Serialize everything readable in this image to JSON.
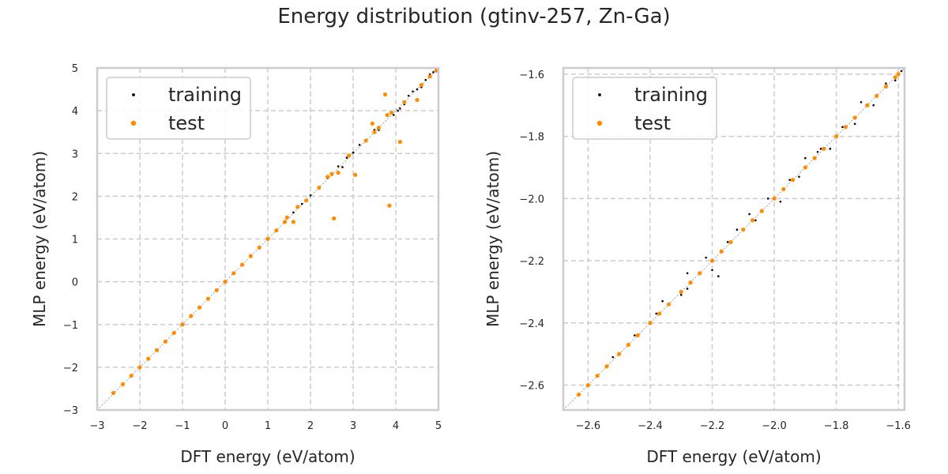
{
  "title": "Energy distribution (gtinv-257, Zn-Ga)",
  "colors": {
    "training": "#000000",
    "test": "#ff8c00",
    "grid": "#cccccc",
    "frame": "#cccccc"
  },
  "chart_data": [
    {
      "type": "scatter",
      "xlabel": "DFT energy (eV/atom)",
      "ylabel": "MLP energy (eV/atom)",
      "xlim": [
        -3,
        5
      ],
      "ylim": [
        -3,
        5
      ],
      "xticks": [
        "−3",
        "−2",
        "−1",
        "0",
        "1",
        "2",
        "3",
        "4",
        "5"
      ],
      "yticks": [
        "−3",
        "−2",
        "−1",
        "0",
        "1",
        "2",
        "3",
        "4",
        "5"
      ],
      "grid": true,
      "legend": "top-left",
      "diagonal": true,
      "series": [
        {
          "name": "training",
          "color": "#000000",
          "marker_size": 1.3,
          "points": [
            [
              -2.6,
              -2.6
            ],
            [
              -2.2,
              -2.2
            ],
            [
              -1.8,
              -1.8
            ],
            [
              -1.4,
              -1.4
            ],
            [
              -1.0,
              -1.0
            ],
            [
              -0.6,
              -0.6
            ],
            [
              -0.2,
              -0.2
            ],
            [
              0.2,
              0.2
            ],
            [
              0.6,
              0.6
            ],
            [
              1.0,
              1.0
            ],
            [
              1.4,
              1.4
            ],
            [
              2.0,
              2.02
            ],
            [
              2.4,
              2.42
            ],
            [
              2.65,
              2.7
            ],
            [
              2.75,
              2.68
            ],
            [
              3.0,
              3.02
            ],
            [
              3.3,
              3.32
            ],
            [
              3.6,
              3.55
            ],
            [
              3.8,
              3.9
            ],
            [
              4.05,
              4.0
            ],
            [
              4.2,
              4.15
            ],
            [
              4.3,
              4.35
            ],
            [
              4.4,
              4.45
            ],
            [
              4.5,
              4.5
            ],
            [
              4.6,
              4.55
            ],
            [
              4.7,
              4.72
            ],
            [
              4.8,
              4.85
            ],
            [
              4.88,
              4.9
            ],
            [
              4.95,
              4.92
            ],
            [
              4.1,
              4.05
            ],
            [
              3.95,
              3.9
            ],
            [
              3.5,
              3.55
            ],
            [
              3.15,
              3.2
            ],
            [
              2.85,
              2.9
            ],
            [
              1.8,
              1.82
            ],
            [
              1.6,
              1.62
            ]
          ]
        },
        {
          "name": "test",
          "color": "#ff8c00",
          "marker_size": 2.6,
          "points": [
            [
              -2.62,
              -2.6
            ],
            [
              -2.4,
              -2.4
            ],
            [
              -2.2,
              -2.2
            ],
            [
              -2.0,
              -2.0
            ],
            [
              -1.8,
              -1.8
            ],
            [
              -1.6,
              -1.6
            ],
            [
              -1.4,
              -1.4
            ],
            [
              -1.2,
              -1.2
            ],
            [
              -1.0,
              -1.0
            ],
            [
              -0.8,
              -0.8
            ],
            [
              -0.6,
              -0.6
            ],
            [
              -0.4,
              -0.4
            ],
            [
              -0.2,
              -0.2
            ],
            [
              0.0,
              0.0
            ],
            [
              0.2,
              0.2
            ],
            [
              0.4,
              0.4
            ],
            [
              0.6,
              0.6
            ],
            [
              0.8,
              0.8
            ],
            [
              1.0,
              1.0
            ],
            [
              1.2,
              1.2
            ],
            [
              1.4,
              1.4
            ],
            [
              1.45,
              1.5
            ],
            [
              1.6,
              1.4
            ],
            [
              1.7,
              1.75
            ],
            [
              1.9,
              1.9
            ],
            [
              2.2,
              2.2
            ],
            [
              2.4,
              2.45
            ],
            [
              2.5,
              2.52
            ],
            [
              2.55,
              1.48
            ],
            [
              2.65,
              2.55
            ],
            [
              2.9,
              2.95
            ],
            [
              3.05,
              2.5
            ],
            [
              3.3,
              3.3
            ],
            [
              3.45,
              3.7
            ],
            [
              3.5,
              3.5
            ],
            [
              3.6,
              3.6
            ],
            [
              3.75,
              4.38
            ],
            [
              3.8,
              3.9
            ],
            [
              3.85,
              1.78
            ],
            [
              3.9,
              3.95
            ],
            [
              4.1,
              3.27
            ],
            [
              4.2,
              4.2
            ],
            [
              4.5,
              4.25
            ],
            [
              4.6,
              4.6
            ],
            [
              4.8,
              4.8
            ],
            [
              4.95,
              4.95
            ]
          ]
        }
      ]
    },
    {
      "type": "scatter",
      "xlabel": "DFT energy (eV/atom)",
      "ylabel": "MLP energy (eV/atom)",
      "xlim": [
        -2.68,
        -1.58
      ],
      "ylim": [
        -2.68,
        -1.58
      ],
      "xticks": [
        "−2.6",
        "−2.4",
        "−2.2",
        "−2.0",
        "−1.8",
        "−1.6"
      ],
      "yticks": [
        "−2.6",
        "−2.4",
        "−2.2",
        "−2.0",
        "−1.8",
        "−1.6"
      ],
      "grid": true,
      "legend": "top-left",
      "diagonal": true,
      "series": [
        {
          "name": "training",
          "color": "#000000",
          "marker_size": 1.3,
          "points": [
            [
              -2.6,
              -2.6
            ],
            [
              -2.52,
              -2.51
            ],
            [
              -2.45,
              -2.44
            ],
            [
              -2.38,
              -2.37
            ],
            [
              -2.36,
              -2.33
            ],
            [
              -2.3,
              -2.31
            ],
            [
              -2.28,
              -2.24
            ],
            [
              -2.22,
              -2.19
            ],
            [
              -2.2,
              -2.23
            ],
            [
              -2.18,
              -2.25
            ],
            [
              -2.15,
              -2.14
            ],
            [
              -2.12,
              -2.1
            ],
            [
              -2.06,
              -2.07
            ],
            [
              -2.02,
              -2.0
            ],
            [
              -1.98,
              -2.01
            ],
            [
              -1.95,
              -1.94
            ],
            [
              -1.92,
              -1.93
            ],
            [
              -1.9,
              -1.87
            ],
            [
              -1.86,
              -1.85
            ],
            [
              -1.82,
              -1.84
            ],
            [
              -1.78,
              -1.77
            ],
            [
              -1.74,
              -1.76
            ],
            [
              -1.72,
              -1.69
            ],
            [
              -1.68,
              -1.7
            ],
            [
              -1.64,
              -1.63
            ],
            [
              -1.61,
              -1.62
            ],
            [
              -1.6,
              -1.6
            ],
            [
              -1.59,
              -1.59
            ],
            [
              -2.28,
              -2.29
            ],
            [
              -2.08,
              -2.05
            ],
            [
              -1.85,
              -1.84
            ]
          ]
        },
        {
          "name": "test",
          "color": "#ff8c00",
          "marker_size": 2.6,
          "points": [
            [
              -2.63,
              -2.63
            ],
            [
              -2.6,
              -2.6
            ],
            [
              -2.57,
              -2.57
            ],
            [
              -2.54,
              -2.54
            ],
            [
              -2.5,
              -2.5
            ],
            [
              -2.47,
              -2.47
            ],
            [
              -2.44,
              -2.44
            ],
            [
              -2.4,
              -2.4
            ],
            [
              -2.37,
              -2.37
            ],
            [
              -2.34,
              -2.34
            ],
            [
              -2.3,
              -2.3
            ],
            [
              -2.27,
              -2.27
            ],
            [
              -2.24,
              -2.24
            ],
            [
              -2.2,
              -2.2
            ],
            [
              -2.17,
              -2.17
            ],
            [
              -2.14,
              -2.14
            ],
            [
              -2.1,
              -2.1
            ],
            [
              -2.07,
              -2.07
            ],
            [
              -2.04,
              -2.04
            ],
            [
              -2.0,
              -2.0
            ],
            [
              -1.97,
              -1.97
            ],
            [
              -1.94,
              -1.94
            ],
            [
              -1.9,
              -1.9
            ],
            [
              -1.87,
              -1.87
            ],
            [
              -1.84,
              -1.84
            ],
            [
              -1.8,
              -1.8
            ],
            [
              -1.77,
              -1.77
            ],
            [
              -1.74,
              -1.74
            ],
            [
              -1.7,
              -1.7
            ],
            [
              -1.67,
              -1.67
            ],
            [
              -1.64,
              -1.64
            ],
            [
              -1.61,
              -1.61
            ],
            [
              -1.6,
              -1.6
            ]
          ]
        }
      ]
    }
  ]
}
